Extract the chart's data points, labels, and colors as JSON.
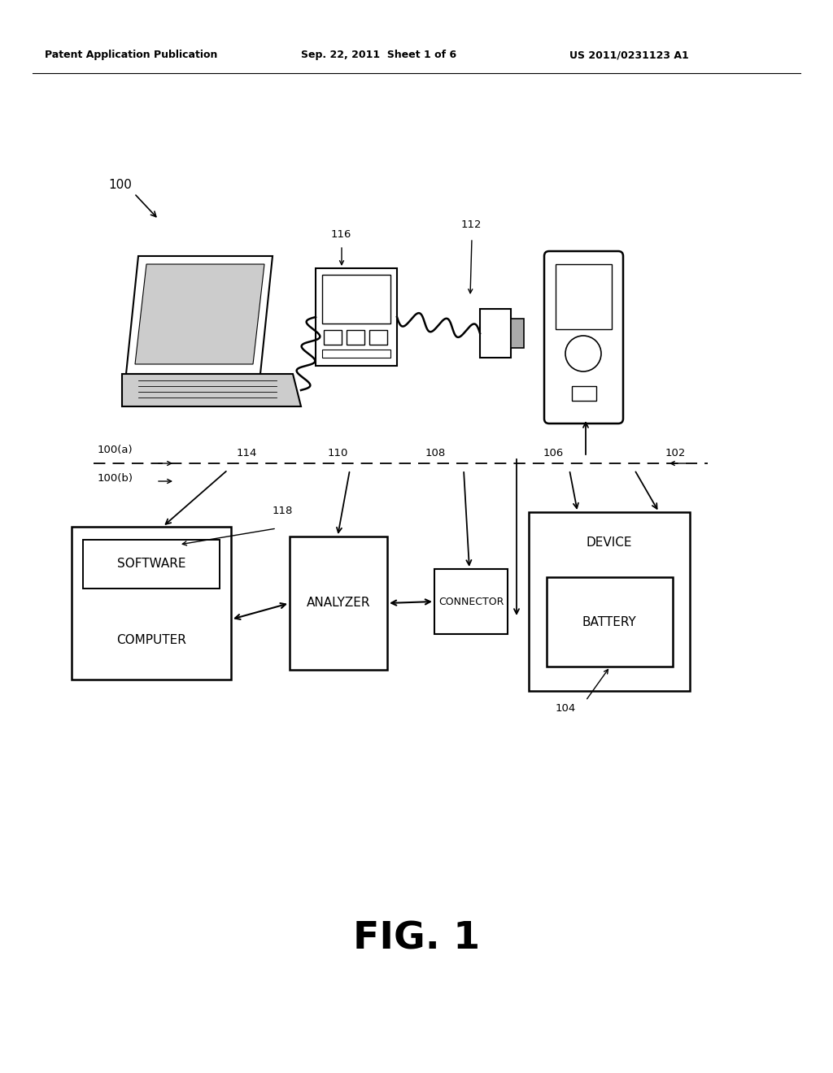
{
  "background_color": "#ffffff",
  "header_left": "Patent Application Publication",
  "header_mid": "Sep. 22, 2011  Sheet 1 of 6",
  "header_right": "US 2011/0231123 A1",
  "fig_label": "FIG. 1",
  "ref_100": "100",
  "ref_100a": "100(a)",
  "ref_100b": "100(b)",
  "ref_102": "102",
  "ref_104": "104",
  "ref_106": "106",
  "ref_108": "108",
  "ref_110": "110",
  "ref_112": "112",
  "ref_114": "114",
  "ref_116": "116",
  "ref_118": "118",
  "label_computer": "COMPUTER",
  "label_software": "SOFTWARE",
  "label_analyzer": "ANALYZER",
  "label_connector": "CONNECTOR",
  "label_battery": "BATTERY",
  "label_device": "DEVICE"
}
